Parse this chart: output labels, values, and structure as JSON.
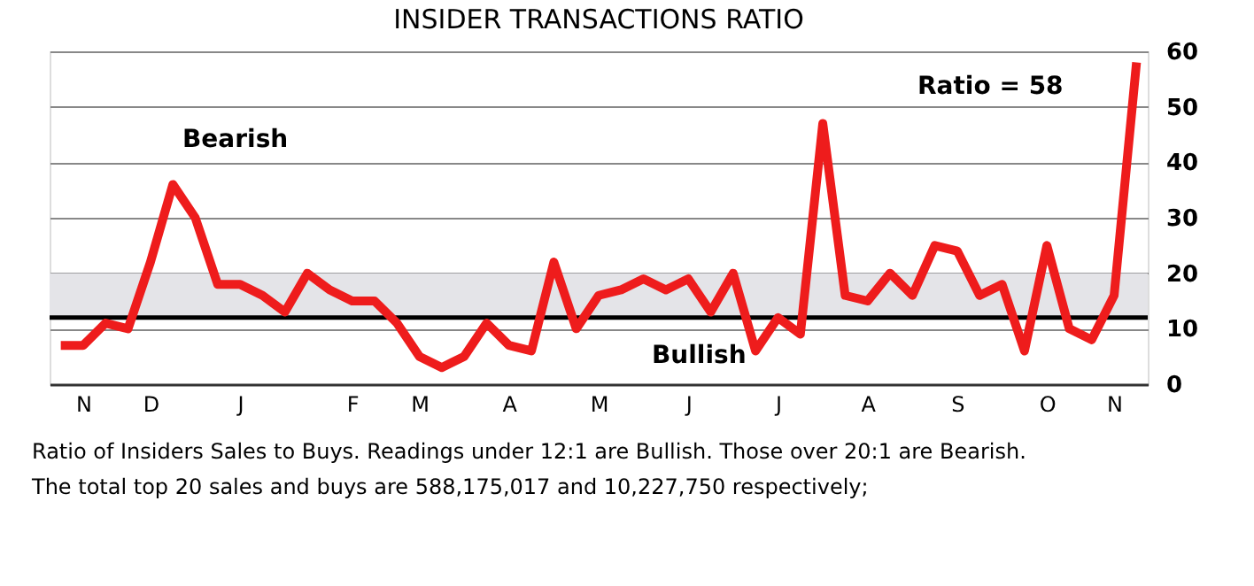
{
  "chart_data": {
    "type": "line",
    "title": "INSIDER TRANSACTIONS RATIO",
    "categories": [
      null,
      "N",
      null,
      null,
      "D",
      null,
      null,
      null,
      "J",
      null,
      null,
      null,
      null,
      "F",
      null,
      null,
      "M",
      null,
      null,
      null,
      "A",
      null,
      null,
      null,
      "M",
      null,
      null,
      null,
      "J",
      null,
      null,
      null,
      "J",
      null,
      null,
      null,
      "A",
      null,
      null,
      null,
      "S",
      null,
      null,
      null,
      "O",
      null,
      null,
      "N",
      null
    ],
    "series": [
      {
        "color": "#ee1c1c",
        "values": [
          7,
          7,
          11,
          10,
          22,
          36,
          30,
          18,
          18,
          16,
          13,
          20,
          17,
          15,
          15,
          11,
          5,
          3,
          5,
          11,
          7,
          6,
          22,
          10,
          16,
          17,
          19,
          17,
          19,
          13,
          20,
          6,
          12,
          9,
          47,
          16,
          15,
          20,
          16,
          25,
          24,
          16,
          18,
          6,
          25,
          10,
          8,
          16,
          58
        ]
      }
    ],
    "ylim": [
      0,
      60
    ],
    "yticks": [
      0,
      10,
      20,
      30,
      40,
      50,
      60
    ],
    "grid": "y",
    "bands": [
      {
        "axis": "y",
        "from": 12,
        "to": 20,
        "color": "#e4e4e8"
      }
    ],
    "ref_lines": [
      {
        "axis": "y",
        "value": 12,
        "color": "#000000"
      }
    ],
    "annotations": [
      "Bearish",
      "Bullish",
      "Ratio = 58",
      "Ratio of Insiders Sales to Buys. Readings under 12:1 are Bullish. Those over 20:1 are Bearish.",
      "The total top 20 sales and buys are 588,175,017 and 10,227,750 respectively;"
    ]
  }
}
